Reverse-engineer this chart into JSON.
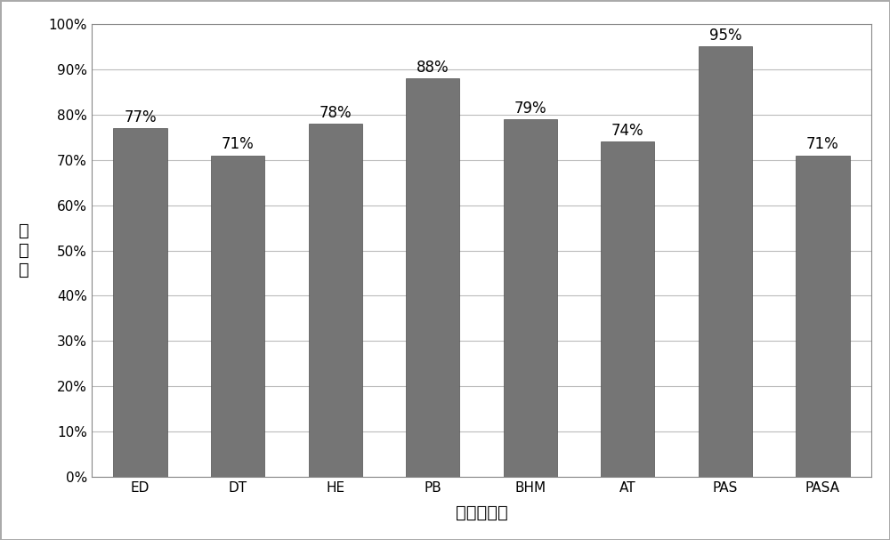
{
  "categories": [
    "ED",
    "DT",
    "HE",
    "PB",
    "BHM",
    "AT",
    "PAS",
    "PASA"
  ],
  "values": [
    0.77,
    0.71,
    0.78,
    0.88,
    0.79,
    0.74,
    0.95,
    0.71
  ],
  "labels": [
    "77%",
    "71%",
    "78%",
    "88%",
    "79%",
    "74%",
    "95%",
    "71%"
  ],
  "bar_color": "#757575",
  "ylabel": "阻垄率",
  "xlabel": "阻垄剂类型",
  "ylim": [
    0,
    1.0
  ],
  "yticks": [
    0.0,
    0.1,
    0.2,
    0.3,
    0.4,
    0.5,
    0.6,
    0.7,
    0.8,
    0.9,
    1.0
  ],
  "ytick_labels": [
    "0%",
    "10%",
    "20%",
    "30%",
    "40%",
    "50%",
    "60%",
    "70%",
    "80%",
    "90%",
    "100%"
  ],
  "grid_color": "#bbbbbb",
  "background_color": "#ffffff",
  "bar_edge_color": "#505050",
  "label_fontsize": 12,
  "axis_label_fontsize": 14,
  "tick_fontsize": 11,
  "bar_width": 0.55
}
